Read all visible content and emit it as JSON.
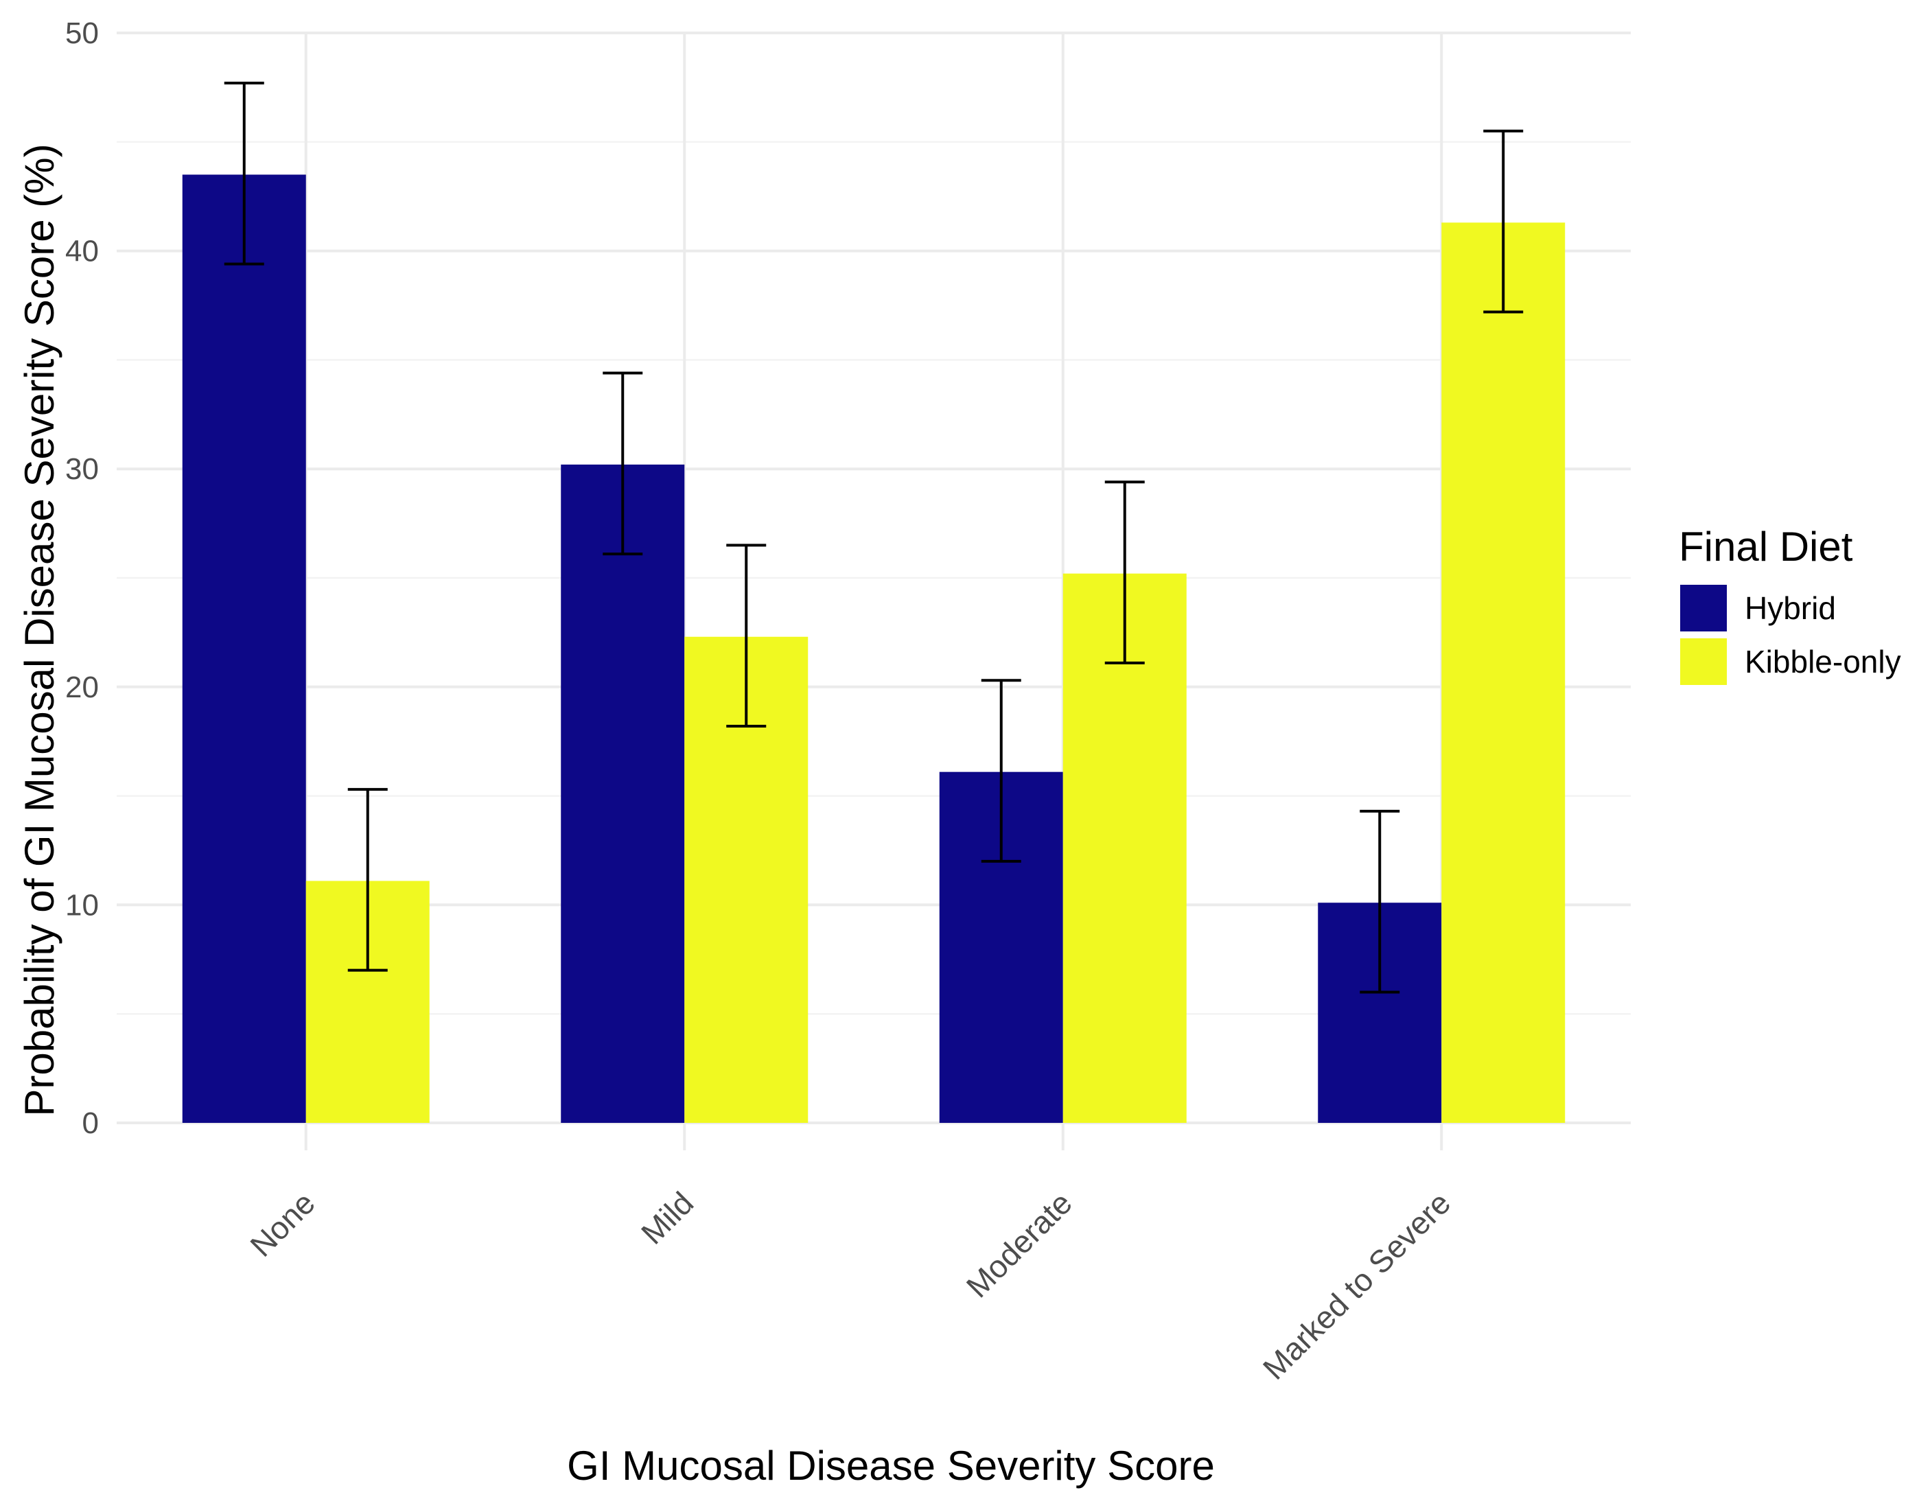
{
  "chart_data": {
    "type": "bar",
    "title": "",
    "xlabel": "GI Mucosal Disease Severity Score",
    "ylabel": "Probability of GI Mucosal Disease Severity Score (%)",
    "categories": [
      "None",
      "Mild",
      "Moderate",
      "Marked to Severe"
    ],
    "ylim": [
      0,
      50
    ],
    "yticks": [
      0,
      10,
      20,
      30,
      40,
      50
    ],
    "grid": true,
    "legend": {
      "title": "Final Diet",
      "position": "right"
    },
    "series": [
      {
        "name": "Hybrid",
        "color": "#0d0887",
        "values": [
          43.5,
          30.2,
          16.1,
          10.1
        ],
        "err_low": [
          39.4,
          26.1,
          12.0,
          6.0
        ],
        "err_high": [
          47.7,
          34.4,
          20.3,
          14.3
        ]
      },
      {
        "name": "Kibble-only",
        "color": "#f0f921",
        "values": [
          11.1,
          22.3,
          25.2,
          41.3
        ],
        "err_low": [
          7.0,
          18.2,
          21.1,
          37.2
        ],
        "err_high": [
          15.3,
          26.5,
          29.4,
          45.5
        ]
      }
    ]
  }
}
